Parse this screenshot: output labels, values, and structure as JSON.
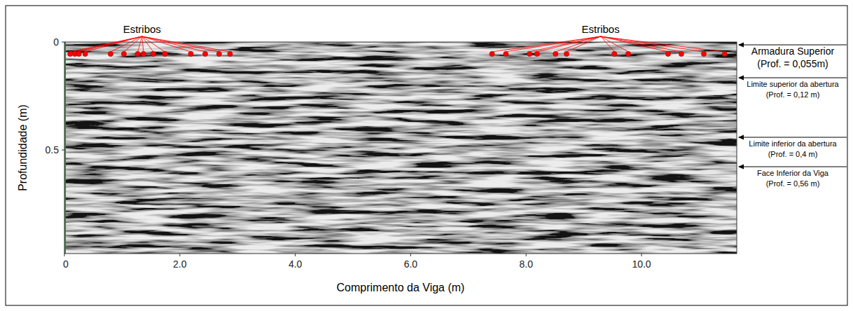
{
  "chart_data": {
    "type": "scatter",
    "xlabel": "Comprimento da Viga (m)",
    "ylabel": "Profundidade (m)",
    "xlim": [
      0,
      11.65
    ],
    "ylim": [
      0,
      0.98
    ],
    "xticks": [
      0,
      {
        "value": 2,
        "label": "2.0"
      },
      {
        "value": 4,
        "label": "4.0"
      },
      {
        "value": 6,
        "label": "6.0"
      },
      {
        "value": 8,
        "label": "8.0"
      },
      {
        "value": 10,
        "label": "10.0"
      }
    ],
    "yticks": [
      0,
      0.5
    ],
    "grid": false,
    "series": [
      {
        "name": "Estribos",
        "color": "#ff0000",
        "marker": "circle",
        "x": [
          0.1,
          0.18,
          0.25,
          0.36,
          0.8,
          1.03,
          1.27,
          1.37,
          1.54,
          1.74,
          2.19,
          2.44,
          2.68,
          2.87
        ],
        "values": [
          0.055,
          0.055,
          0.055,
          0.055,
          0.055,
          0.055,
          0.055,
          0.055,
          0.055,
          0.055,
          0.055,
          0.055,
          0.055,
          0.055
        ]
      },
      {
        "name": "Estribos",
        "color": "#ff0000",
        "marker": "circle",
        "x": [
          7.41,
          7.65,
          8.06,
          8.19,
          8.51,
          8.7,
          9.53,
          9.77,
          10.46,
          10.69,
          11.08,
          11.44
        ],
        "values": [
          0.055,
          0.055,
          0.055,
          0.055,
          0.055,
          0.055,
          0.055,
          0.055,
          0.055,
          0.055,
          0.055,
          0.055
        ]
      }
    ],
    "annotations": [
      {
        "text": "Armadura Superior",
        "detail": "(Prof. = 0,055m)"
      },
      {
        "text": "Limite superior da abertura",
        "detail": "(Prof. = 0,12 m)"
      },
      {
        "text": "Limite inferior da abertura",
        "detail": "(Prof. = 0,4 m)"
      },
      {
        "text": "Face Inferior da Viga",
        "detail": "(Prof. = 0,56 m)"
      }
    ]
  }
}
